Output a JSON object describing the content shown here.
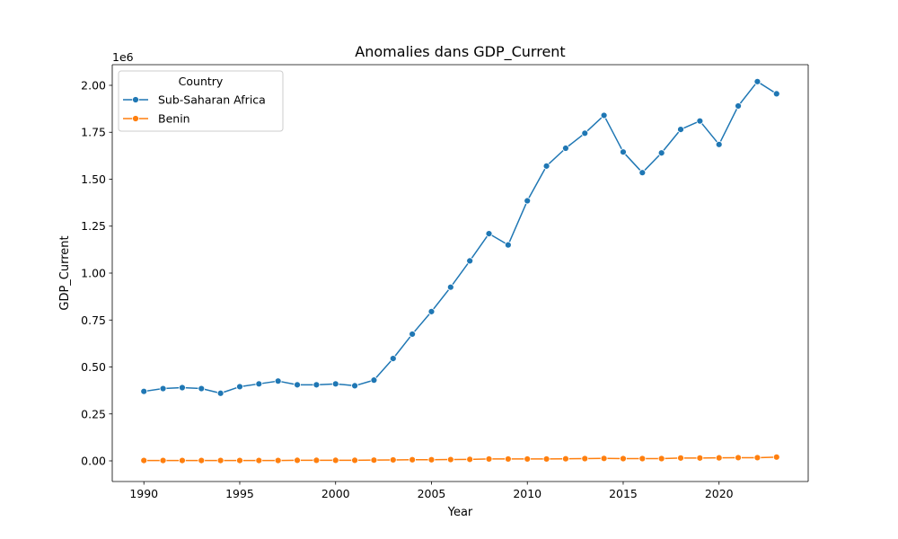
{
  "chart_data": {
    "type": "line",
    "title": "Anomalies dans GDP_Current",
    "xlabel": "Year",
    "ylabel": "GDP_Current",
    "y_multiplier_label": "1e6",
    "xlim": [
      1988.35,
      2024.65
    ],
    "ylim": [
      -0.11,
      2.11
    ],
    "x_ticks": [
      1990,
      1995,
      2000,
      2005,
      2010,
      2015,
      2020
    ],
    "y_ticks": [
      0.0,
      0.25,
      0.5,
      0.75,
      1.0,
      1.25,
      1.5,
      1.75,
      2.0
    ],
    "y_tick_labels": [
      "0.00",
      "0.25",
      "0.50",
      "0.75",
      "1.00",
      "1.25",
      "1.50",
      "1.75",
      "2.00"
    ],
    "grid": false,
    "legend": {
      "title": "Country",
      "placement": "top-left"
    },
    "x": [
      1990,
      1991,
      1992,
      1993,
      1994,
      1995,
      1996,
      1997,
      1998,
      1999,
      2000,
      2001,
      2002,
      2003,
      2004,
      2005,
      2006,
      2007,
      2008,
      2009,
      2010,
      2011,
      2012,
      2013,
      2014,
      2015,
      2016,
      2017,
      2018,
      2019,
      2020,
      2021,
      2022,
      2023
    ],
    "series": [
      {
        "name": "Sub-Saharan Africa",
        "color": "#1f77b4",
        "values": [
          0.37,
          0.385,
          0.39,
          0.385,
          0.36,
          0.395,
          0.41,
          0.425,
          0.405,
          0.405,
          0.41,
          0.4,
          0.43,
          0.545,
          0.675,
          0.795,
          0.925,
          1.065,
          1.21,
          1.15,
          1.385,
          1.57,
          1.665,
          1.745,
          1.84,
          1.645,
          1.535,
          1.64,
          1.765,
          1.81,
          1.685,
          1.89,
          2.02,
          1.955
        ]
      },
      {
        "name": "Benin",
        "color": "#ff7f0e",
        "values": [
          0.002,
          0.002,
          0.002,
          0.002,
          0.002,
          0.002,
          0.002,
          0.002,
          0.003,
          0.003,
          0.003,
          0.003,
          0.004,
          0.005,
          0.006,
          0.006,
          0.007,
          0.008,
          0.01,
          0.01,
          0.01,
          0.01,
          0.011,
          0.012,
          0.013,
          0.012,
          0.012,
          0.012,
          0.015,
          0.015,
          0.016,
          0.017,
          0.017,
          0.02
        ]
      }
    ]
  }
}
